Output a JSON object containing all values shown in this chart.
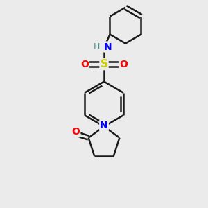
{
  "bg_color": "#ebebeb",
  "bond_color": "#1a1a1a",
  "bond_width": 1.8,
  "S_color": "#cccc00",
  "O_color": "#ff0000",
  "N_color": "#0000ff",
  "H_color": "#4a9090",
  "figsize": [
    3.0,
    3.0
  ],
  "dpi": 100,
  "xlim": [
    0,
    10
  ],
  "ylim": [
    0,
    10
  ]
}
